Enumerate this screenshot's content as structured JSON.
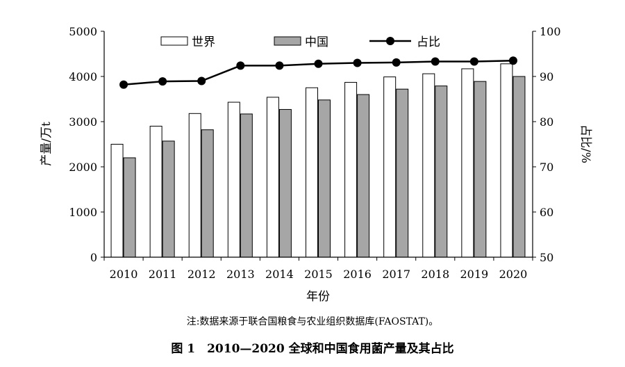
{
  "chart_data": {
    "type": "bar",
    "categories": [
      "2010",
      "2011",
      "2012",
      "2013",
      "2014",
      "2015",
      "2016",
      "2017",
      "2018",
      "2019",
      "2020"
    ],
    "series": [
      {
        "name": "世界",
        "kind": "bar",
        "axis": "left",
        "color": "#ffffff",
        "values": [
          2500,
          2900,
          3180,
          3430,
          3540,
          3750,
          3870,
          3990,
          4060,
          4170,
          4280
        ]
      },
      {
        "name": "中国",
        "kind": "bar",
        "axis": "left",
        "color": "#a6a6a6",
        "values": [
          2200,
          2570,
          2820,
          3170,
          3270,
          3480,
          3600,
          3720,
          3790,
          3890,
          4000
        ]
      },
      {
        "name": "占比",
        "kind": "line",
        "axis": "right",
        "color": "#000000",
        "values": [
          88.2,
          88.9,
          89.0,
          92.4,
          92.4,
          92.8,
          93.0,
          93.1,
          93.3,
          93.3,
          93.5
        ]
      }
    ],
    "xlabel": "年份",
    "ylabel": "产量/万t",
    "y2label": "占比/%",
    "ylim": [
      0,
      5000
    ],
    "y2lim": [
      50,
      100
    ],
    "yticks": [
      "0",
      "1000",
      "2000",
      "3000",
      "4000",
      "5000"
    ],
    "y2ticks": [
      "50",
      "60",
      "70",
      "80",
      "90",
      "100"
    ],
    "grid": false,
    "legend_position": "top"
  },
  "note": "注:数据来源于联合国粮食与农业组织数据库(FAOSTAT)。",
  "caption": "图 1　2010—2020 全球和中国食用菌产量及其占比"
}
